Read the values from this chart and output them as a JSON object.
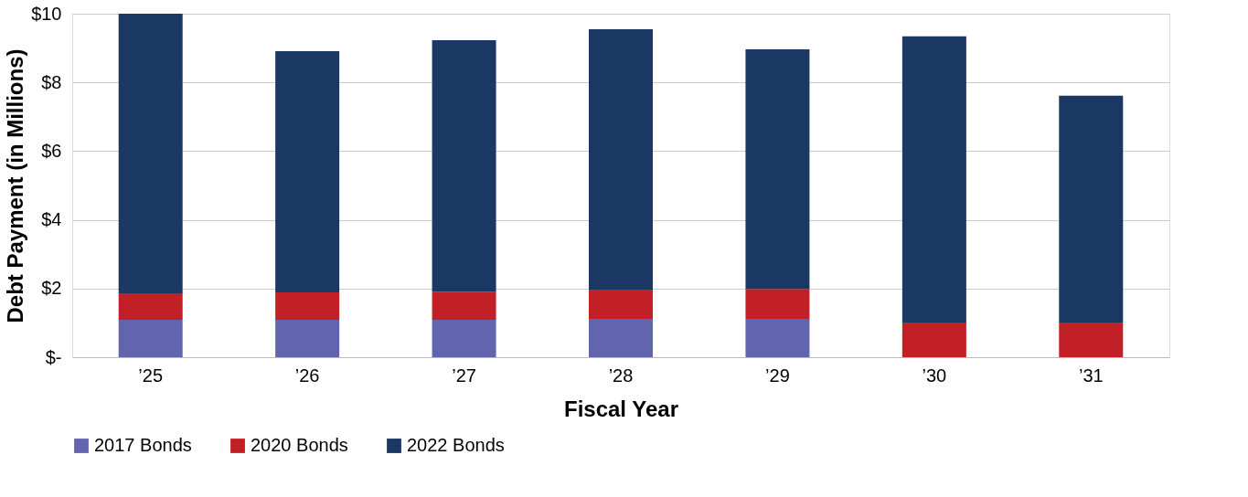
{
  "chart_data": {
    "type": "bar",
    "stacked": true,
    "xlabel": "Fiscal Year",
    "ylabel": "Debt Payment (in Millions)",
    "categories": [
      "’25",
      "’26",
      "’27",
      "’28",
      "’29",
      "’30",
      "’31"
    ],
    "series": [
      {
        "name": "2017 Bonds",
        "color": "#6264b0",
        "values": [
          1.09,
          1.09,
          1.09,
          1.12,
          1.12,
          0,
          0
        ]
      },
      {
        "name": "2020 Bonds",
        "color": "#c02026",
        "values": [
          0.77,
          0.8,
          0.82,
          0.85,
          0.87,
          1.01,
          1.01
        ]
      },
      {
        "name": "2022 Bonds",
        "color": "#1b3764",
        "values": [
          8.14,
          7.02,
          7.32,
          7.58,
          6.97,
          8.33,
          6.6
        ]
      }
    ],
    "ylim": [
      0,
      10
    ],
    "yticks": [
      {
        "value": 0,
        "label": "$-"
      },
      {
        "value": 2,
        "label": "$2"
      },
      {
        "value": 4,
        "label": "$4"
      },
      {
        "value": 6,
        "label": "$6"
      },
      {
        "value": 8,
        "label": "$8"
      },
      {
        "value": 10,
        "label": "$10"
      }
    ],
    "grid": "y",
    "legend": "bottom"
  }
}
